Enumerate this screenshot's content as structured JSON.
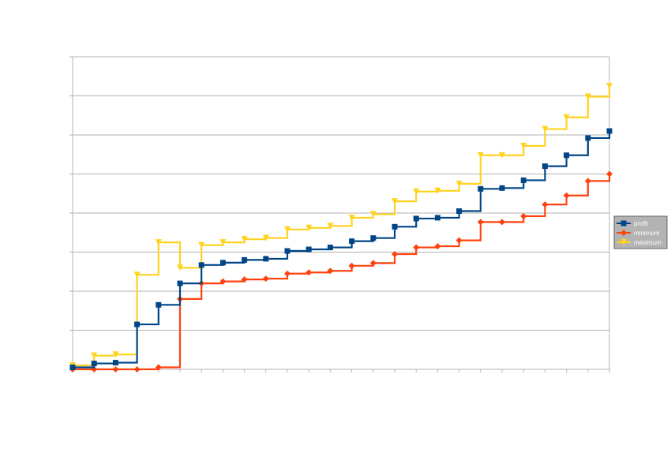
{
  "chart_data": {
    "type": "line",
    "step": true,
    "x": [
      1,
      2,
      3,
      4,
      5,
      6,
      7,
      8,
      9,
      10,
      11,
      12,
      13,
      14,
      15,
      16,
      17,
      18,
      19,
      20,
      21,
      22,
      23,
      24,
      25,
      26
    ],
    "ylim": [
      0,
      8
    ],
    "grid": true,
    "legend_position": "right",
    "series": [
      {
        "name": "profit",
        "color": "#004586",
        "marker": "square",
        "values": [
          0.05,
          0.15,
          0.17,
          1.15,
          1.65,
          2.2,
          2.67,
          2.73,
          2.8,
          2.83,
          3.03,
          3.07,
          3.12,
          3.28,
          3.36,
          3.65,
          3.86,
          3.88,
          4.05,
          4.62,
          4.64,
          4.84,
          5.2,
          5.48,
          5.92,
          6.1
        ]
      },
      {
        "name": "minimum",
        "color": "#ff420e",
        "marker": "diamond",
        "values": [
          0.0,
          0.0,
          0.0,
          0.0,
          0.05,
          1.8,
          2.2,
          2.25,
          2.3,
          2.32,
          2.45,
          2.48,
          2.52,
          2.65,
          2.72,
          2.95,
          3.12,
          3.15,
          3.3,
          3.77,
          3.77,
          3.92,
          4.22,
          4.45,
          4.82,
          5.0
        ]
      },
      {
        "name": "maximum",
        "color": "#ffd320",
        "marker": "triangle-down",
        "values": [
          0.1,
          0.35,
          0.38,
          2.42,
          3.25,
          2.6,
          3.18,
          3.25,
          3.33,
          3.36,
          3.58,
          3.62,
          3.67,
          3.88,
          3.97,
          4.3,
          4.55,
          4.57,
          4.75,
          5.48,
          5.48,
          5.72,
          6.15,
          6.45,
          6.98,
          7.25
        ]
      }
    ]
  }
}
